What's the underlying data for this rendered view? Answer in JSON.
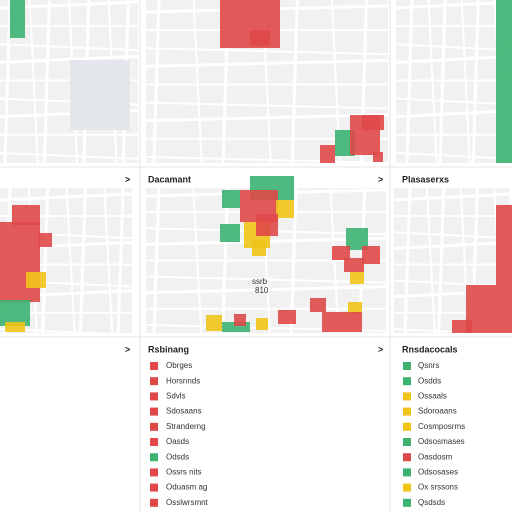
{
  "panels": [
    {
      "chevron": ">",
      "title": "Dacamant"
    },
    {
      "chevron": ">",
      "title": "Plasaserxs"
    },
    {
      "chevron": ">",
      "title": "Rsbinang"
    },
    {
      "chevron": ">",
      "title": "Rnsdacocals"
    }
  ],
  "map_labels": [
    "ssrb",
    "810"
  ],
  "legends": [
    {
      "items": [
        {
          "label": "Obrges",
          "color": "#e04848"
        },
        {
          "label": "Horsnnds",
          "color": "#e04848"
        },
        {
          "label": "Sdvls",
          "color": "#e04848"
        },
        {
          "label": "Sdosaans",
          "color": "#e04848"
        },
        {
          "label": "Stranderng",
          "color": "#e04848"
        },
        {
          "label": "Oasds",
          "color": "#e04848"
        },
        {
          "label": "Odsds",
          "color": "#3cb371"
        },
        {
          "label": "Ossrs  nits",
          "color": "#e04848"
        },
        {
          "label": "Oduasm    ag",
          "color": "#e04848"
        },
        {
          "label": "Osslwrsmnt",
          "color": "#e04848"
        }
      ]
    },
    {
      "items": [
        {
          "label": "Qsnrs",
          "color": "#3cb371"
        },
        {
          "label": "Osdds",
          "color": "#3cb371"
        },
        {
          "label": "Ossaals",
          "color": "#f0c419"
        },
        {
          "label": "Sdoroaans",
          "color": "#f0c419"
        },
        {
          "label": "Cosmposrms",
          "color": "#f0c419"
        },
        {
          "label": "Odsosmases",
          "color": "#3cb371"
        },
        {
          "label": "Oasdosm",
          "color": "#e04848"
        },
        {
          "label": "Odsosases",
          "color": "#3cb371"
        },
        {
          "label": "Ox  srssons",
          "color": "#f0c419"
        },
        {
          "label": "Qsdsds",
          "color": "#3cb371"
        }
      ]
    }
  ]
}
